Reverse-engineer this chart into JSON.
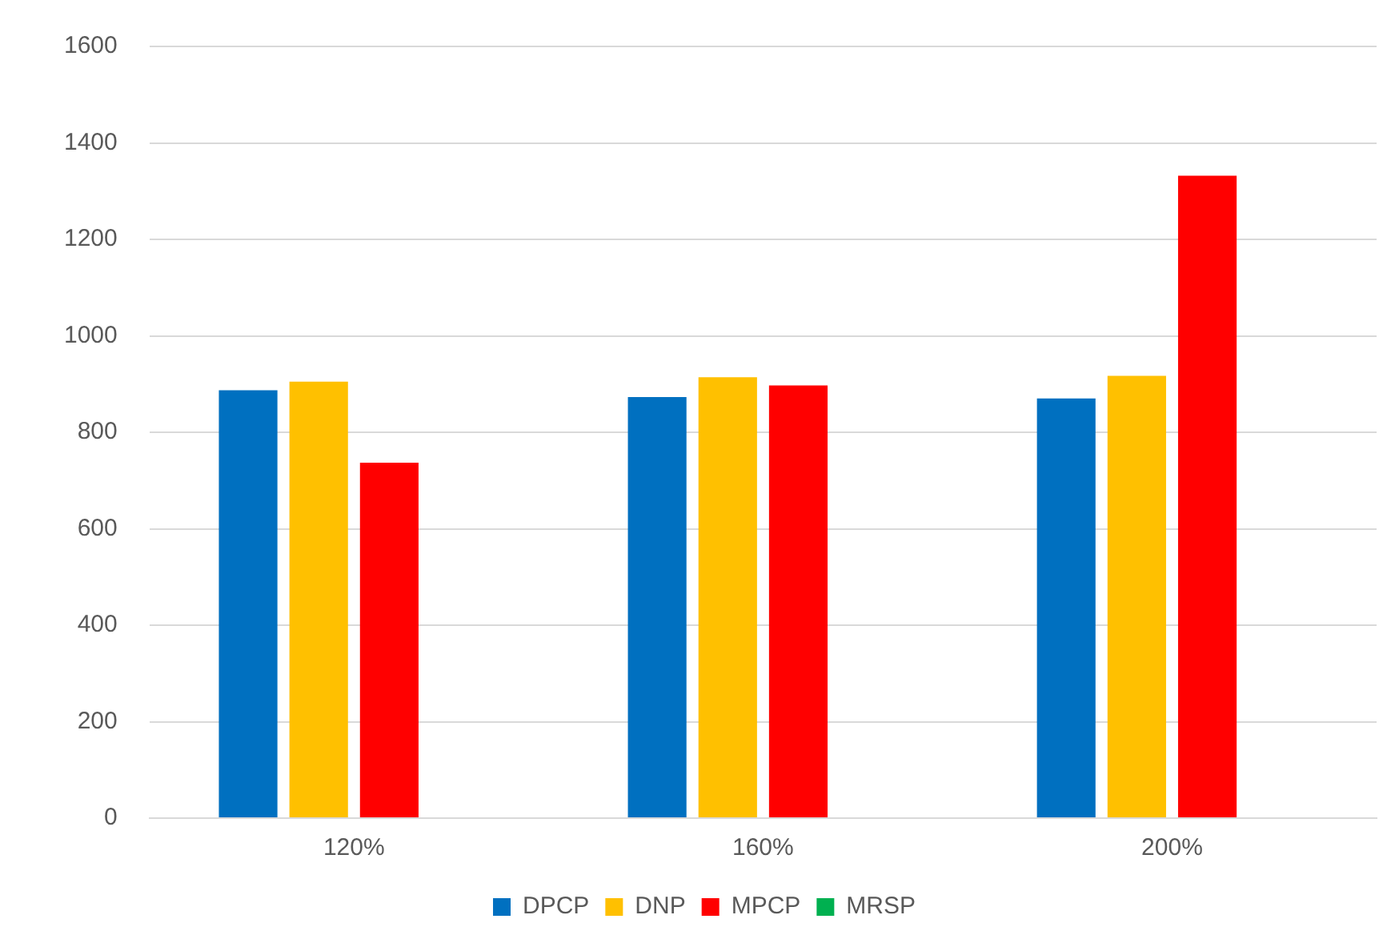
{
  "chart_data": {
    "type": "bar",
    "categories": [
      "120%",
      "160%",
      "200%"
    ],
    "series": [
      {
        "name": "DPCP",
        "color": "#0070c0",
        "values": [
          887,
          873,
          870
        ]
      },
      {
        "name": "DNP",
        "color": "#ffc000",
        "values": [
          905,
          914,
          917
        ]
      },
      {
        "name": "MPCP",
        "color": "#ff0000",
        "values": [
          737,
          897,
          1332
        ]
      },
      {
        "name": "MRSP",
        "color": "#00b050",
        "values": [
          null,
          null,
          null
        ]
      }
    ],
    "ylim": [
      0,
      1600
    ],
    "yticks": [
      0,
      200,
      400,
      600,
      800,
      1000,
      1200,
      1400,
      1600
    ],
    "grid": "y",
    "legend": "bottom"
  }
}
